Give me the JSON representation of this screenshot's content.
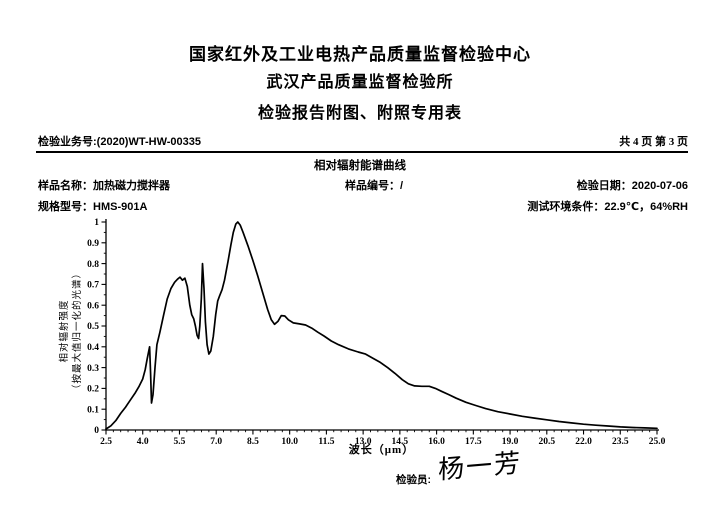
{
  "header": {
    "line1": "国家红外及工业电热产品质量监督检验中心",
    "line2": "武汉产品质量监督检验所",
    "line3": "检验报告附图、附照专用表"
  },
  "meta": {
    "business_label": "检验业务号:",
    "business_no": "(2020)WT-HW-00335",
    "pagination": "共 4 页 第 3 页"
  },
  "fields": {
    "sample_name_label": "样品名称：",
    "sample_name": "加热磁力搅拌器",
    "sample_no_label": "样品编号：",
    "sample_no": "/",
    "date_label": "检验日期：",
    "date": "2020-07-06",
    "model_label": "规格型号：",
    "model": "HMS-901A",
    "env_label": "测试环境条件：",
    "env": "22.9℃，64%RH"
  },
  "footer": {
    "inspector_label": "检验员:",
    "signature": "杨一芳"
  },
  "chart_data": {
    "type": "line",
    "title": "相对辐射能谱曲线",
    "xlabel": "波长（μm）",
    "ylabel_line1": "相对辐射强度",
    "ylabel_line2": "（按最大值归一化的光谱）",
    "xlim": [
      2.5,
      25.0
    ],
    "ylim": [
      0,
      1
    ],
    "x_ticks": [
      2.5,
      4.0,
      5.5,
      7.0,
      8.5,
      10.0,
      11.5,
      13.0,
      14.5,
      16.0,
      17.5,
      19.0,
      20.5,
      22.0,
      23.5,
      25.0
    ],
    "x_minor_step": 0.3,
    "y_ticks": [
      0,
      0.1,
      0.2,
      0.3,
      0.4,
      0.5,
      0.6,
      0.7,
      0.8,
      0.9,
      1.0
    ],
    "y_minor_step": 0.05,
    "grid": false,
    "legend": false,
    "line_color": "#000000",
    "series": [
      {
        "name": "相对辐射强度",
        "points": [
          [
            2.5,
            0.005
          ],
          [
            2.7,
            0.02
          ],
          [
            2.9,
            0.045
          ],
          [
            3.1,
            0.08
          ],
          [
            3.3,
            0.11
          ],
          [
            3.5,
            0.145
          ],
          [
            3.7,
            0.18
          ],
          [
            3.85,
            0.21
          ],
          [
            4.0,
            0.245
          ],
          [
            4.1,
            0.29
          ],
          [
            4.18,
            0.34
          ],
          [
            4.28,
            0.4
          ],
          [
            4.32,
            0.27
          ],
          [
            4.36,
            0.13
          ],
          [
            4.42,
            0.17
          ],
          [
            4.5,
            0.3
          ],
          [
            4.58,
            0.41
          ],
          [
            4.7,
            0.47
          ],
          [
            4.85,
            0.55
          ],
          [
            5.0,
            0.63
          ],
          [
            5.15,
            0.68
          ],
          [
            5.3,
            0.71
          ],
          [
            5.42,
            0.725
          ],
          [
            5.52,
            0.735
          ],
          [
            5.62,
            0.72
          ],
          [
            5.72,
            0.73
          ],
          [
            5.82,
            0.69
          ],
          [
            5.92,
            0.6
          ],
          [
            6.0,
            0.555
          ],
          [
            6.08,
            0.535
          ],
          [
            6.15,
            0.5
          ],
          [
            6.22,
            0.455
          ],
          [
            6.28,
            0.44
          ],
          [
            6.33,
            0.5
          ],
          [
            6.39,
            0.63
          ],
          [
            6.44,
            0.8
          ],
          [
            6.5,
            0.68
          ],
          [
            6.56,
            0.52
          ],
          [
            6.63,
            0.41
          ],
          [
            6.7,
            0.365
          ],
          [
            6.78,
            0.38
          ],
          [
            6.88,
            0.45
          ],
          [
            6.98,
            0.555
          ],
          [
            7.06,
            0.62
          ],
          [
            7.14,
            0.645
          ],
          [
            7.24,
            0.675
          ],
          [
            7.34,
            0.72
          ],
          [
            7.48,
            0.81
          ],
          [
            7.6,
            0.89
          ],
          [
            7.7,
            0.95
          ],
          [
            7.8,
            0.99
          ],
          [
            7.88,
            1.0
          ],
          [
            7.98,
            0.985
          ],
          [
            8.1,
            0.95
          ],
          [
            8.3,
            0.885
          ],
          [
            8.5,
            0.815
          ],
          [
            8.7,
            0.74
          ],
          [
            8.9,
            0.66
          ],
          [
            9.1,
            0.58
          ],
          [
            9.25,
            0.53
          ],
          [
            9.38,
            0.508
          ],
          [
            9.52,
            0.522
          ],
          [
            9.66,
            0.55
          ],
          [
            9.8,
            0.548
          ],
          [
            9.95,
            0.53
          ],
          [
            10.15,
            0.515
          ],
          [
            10.4,
            0.51
          ],
          [
            10.65,
            0.505
          ],
          [
            10.9,
            0.49
          ],
          [
            11.15,
            0.47
          ],
          [
            11.4,
            0.452
          ],
          [
            11.7,
            0.428
          ],
          [
            12.0,
            0.41
          ],
          [
            12.4,
            0.39
          ],
          [
            12.8,
            0.375
          ],
          [
            13.1,
            0.365
          ],
          [
            13.4,
            0.345
          ],
          [
            13.7,
            0.325
          ],
          [
            14.0,
            0.3
          ],
          [
            14.3,
            0.272
          ],
          [
            14.6,
            0.242
          ],
          [
            14.85,
            0.222
          ],
          [
            15.1,
            0.212
          ],
          [
            15.4,
            0.21
          ],
          [
            15.7,
            0.21
          ],
          [
            15.95,
            0.2
          ],
          [
            16.2,
            0.186
          ],
          [
            16.5,
            0.17
          ],
          [
            16.8,
            0.153
          ],
          [
            17.2,
            0.133
          ],
          [
            17.6,
            0.118
          ],
          [
            18.0,
            0.103
          ],
          [
            18.5,
            0.088
          ],
          [
            19.0,
            0.077
          ],
          [
            19.5,
            0.066
          ],
          [
            20.0,
            0.057
          ],
          [
            20.5,
            0.049
          ],
          [
            21.0,
            0.041
          ],
          [
            21.5,
            0.034
          ],
          [
            22.0,
            0.028
          ],
          [
            22.5,
            0.023
          ],
          [
            23.0,
            0.019
          ],
          [
            23.5,
            0.015
          ],
          [
            24.0,
            0.012
          ],
          [
            24.5,
            0.01
          ],
          [
            25.0,
            0.008
          ]
        ]
      }
    ]
  }
}
